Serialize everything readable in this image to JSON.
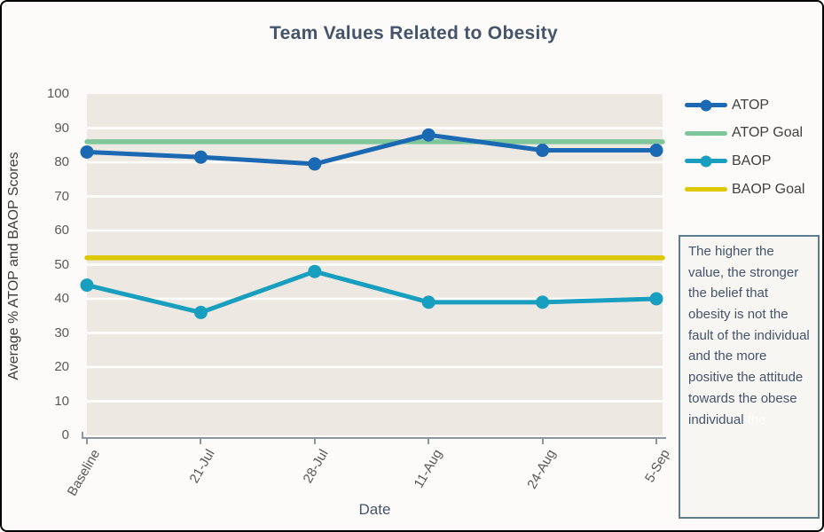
{
  "chart_data": {
    "type": "line",
    "title": "Team Values Related to Obesity",
    "xlabel": "Date",
    "ylabel": "Average % ATOP and BAOP Scores",
    "categories": [
      "Baseline",
      "21-Jul",
      "28-Jul",
      "11-Aug",
      "24-Aug",
      "5-Sep"
    ],
    "series": [
      {
        "name": "ATOP",
        "color": "#1B69B2",
        "marker": "circle",
        "goal": false,
        "values": [
          83,
          81.5,
          79.5,
          88,
          83.5,
          83.5
        ]
      },
      {
        "name": "ATOP Goal",
        "color": "#7FC69B",
        "marker": "none",
        "goal": true,
        "values": [
          86,
          86,
          86,
          86,
          86,
          86
        ]
      },
      {
        "name": "BAOP",
        "color": "#189EBE",
        "marker": "circle",
        "goal": false,
        "values": [
          44,
          36,
          48,
          39,
          39,
          40
        ]
      },
      {
        "name": "BAOP Goal",
        "color": "#DCC800",
        "marker": "none",
        "goal": true,
        "values": [
          52,
          52,
          52,
          52,
          52,
          52
        ]
      }
    ],
    "ylim": [
      0,
      100
    ],
    "y_ticks": [
      0,
      10,
      20,
      30,
      40,
      50,
      60,
      70,
      80,
      90,
      100
    ],
    "grid": true,
    "legend_position": "right"
  },
  "annotation": {
    "text": "The higher the value, the stronger the belief that obesity is not the fault of the individual and the more positive the attitude towards the obese individual",
    "ghost_text": "the"
  },
  "colors": {
    "title_text": "#44546A",
    "tick_label": "#595959",
    "legend_label": "#404040",
    "axis_line": "#8A96A0",
    "plot_background": "#EDE8E1",
    "gridline": "#FFFFFF",
    "annotation_border": "#5D7C8D",
    "annotation_background": "#F7F6F3",
    "frame_border": "#000000"
  }
}
